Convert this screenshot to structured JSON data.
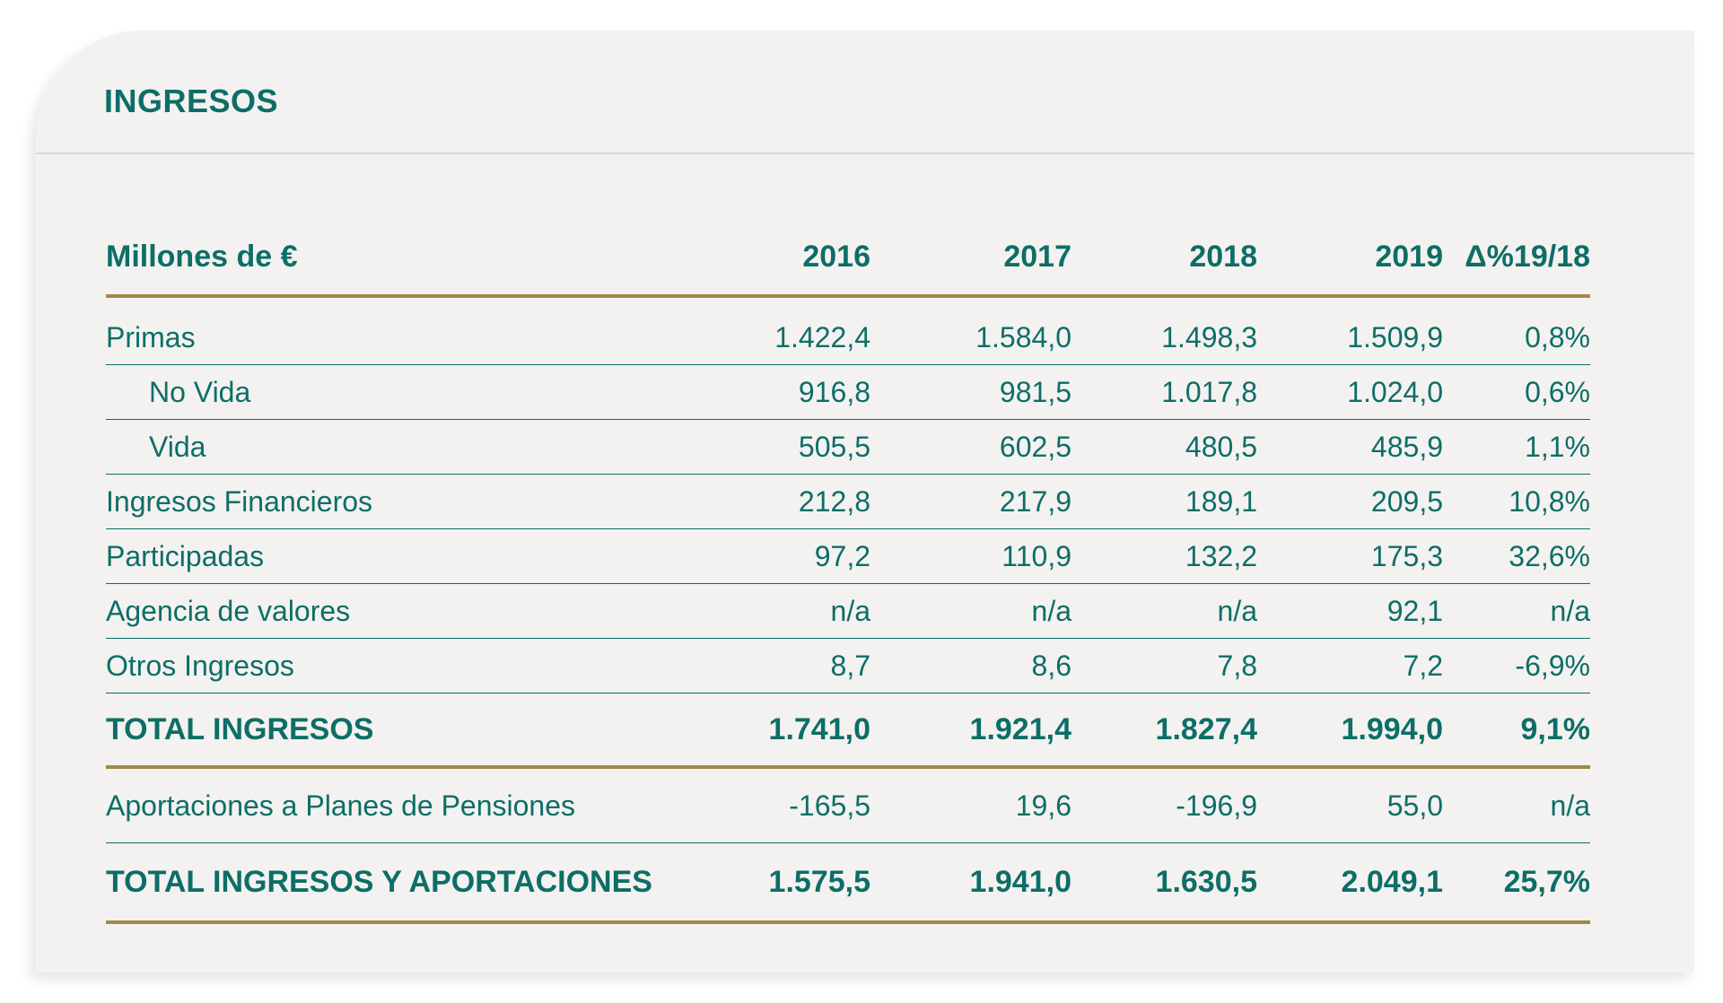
{
  "title": "INGRESOS",
  "table": {
    "columns": [
      "Millones de €",
      "2016",
      "2017",
      "2018",
      "2019",
      "Δ%19/18"
    ],
    "rows": [
      {
        "label": "Primas",
        "values": [
          "1.422,4",
          "1.584,0",
          "1.498,3",
          "1.509,9",
          "0,8%"
        ]
      },
      {
        "label": "No Vida",
        "values": [
          "916,8",
          "981,5",
          "1.017,8",
          "1.024,0",
          "0,6%"
        ]
      },
      {
        "label": "Vida",
        "values": [
          "505,5",
          "602,5",
          "480,5",
          "485,9",
          "1,1%"
        ]
      },
      {
        "label": "Ingresos Financieros",
        "values": [
          "212,8",
          "217,9",
          "189,1",
          "209,5",
          "10,8%"
        ]
      },
      {
        "label": "Participadas",
        "values": [
          "97,2",
          "110,9",
          "132,2",
          "175,3",
          "32,6%"
        ]
      },
      {
        "label": "Agencia de valores",
        "values": [
          "n/a",
          "n/a",
          "n/a",
          "92,1",
          "n/a"
        ]
      },
      {
        "label": "Otros Ingresos",
        "values": [
          "8,7",
          "8,6",
          "7,8",
          "7,2",
          "-6,9%"
        ]
      }
    ],
    "total_ingresos": {
      "label": "TOTAL INGRESOS",
      "values": [
        "1.741,0",
        "1.921,4",
        "1.827,4",
        "1.994,0",
        "9,1%"
      ]
    },
    "aportaciones": {
      "label": "Aportaciones a Planes de Pensiones",
      "values": [
        "-165,5",
        "19,6",
        "-196,9",
        "55,0",
        "n/a"
      ]
    },
    "total_ingresos_aportaciones": {
      "label": "TOTAL INGRESOS Y APORTACIONES",
      "values": [
        "1.575,5",
        "1.941,0",
        "1.630,5",
        "2.049,1",
        "25,7%"
      ]
    }
  },
  "colors": {
    "text": "#0d6e67",
    "gold_rule": "#a08a4a",
    "panel": "#f3f2f0"
  }
}
